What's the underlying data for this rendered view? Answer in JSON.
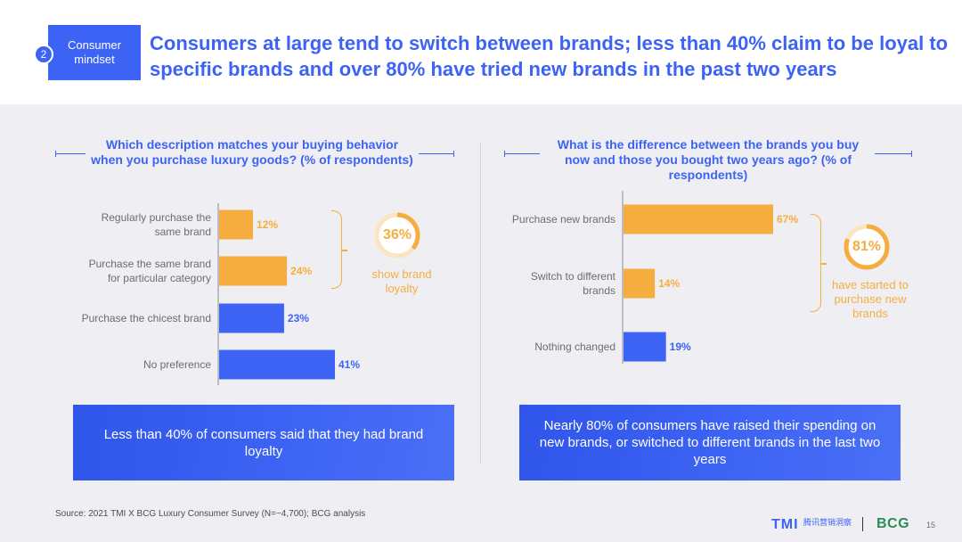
{
  "header": {
    "section_number": "2",
    "section_label": "Consumer mindset",
    "headline": "Consumers at large tend to switch between brands; less than 40% claim to be loyal to specific brands and over 80% have tried new brands in the past two years"
  },
  "left_panel": {
    "question": "Which description matches your buying behavior when you purchase luxury goods? (% of respondents)",
    "donut_value": "36%",
    "donut_note": "show brand loyalty",
    "callout": "Less than 40% of consumers said that they had brand loyalty"
  },
  "right_panel": {
    "question": "What is the difference between the brands you buy now and those you bought two years ago? (% of respondents)",
    "donut_value": "81%",
    "donut_note": "have started to purchase new brands",
    "callout": "Nearly 80% of consumers have raised their spending on new brands, or switched to different brands in the last two years"
  },
  "footer": {
    "source": "Source: 2021 TMI X BCG Luxury Consumer Survey (N=~4,700);  BCG analysis",
    "logo_tmi": "TMI",
    "logo_tmi_cn": "腾讯营销洞察",
    "logo_bcg": "BCG",
    "page_number": "15"
  },
  "colors": {
    "accent_blue": "#3d63f4",
    "accent_orange": "#f6ad3f",
    "panel_bg": "#efeff3"
  },
  "chart_data": [
    {
      "type": "bar",
      "orientation": "horizontal",
      "title": "Which description matches your buying behavior when you purchase luxury goods? (% of respondents)",
      "categories": [
        "Regularly purchase the same brand",
        "Purchase the same brand for particular category",
        "Purchase the chicest brand",
        "No preference"
      ],
      "values": [
        12,
        24,
        23,
        41
      ],
      "value_labels": [
        "12%",
        "24%",
        "23%",
        "41%"
      ],
      "bar_colors": [
        "#f6ad3f",
        "#f6ad3f",
        "#3d63f4",
        "#3d63f4"
      ],
      "xlim": [
        0,
        50
      ],
      "grid": false
    },
    {
      "type": "bar",
      "orientation": "horizontal",
      "title": "What is the difference between the brands you buy now and those you bought two years ago? (% of respondents)",
      "categories": [
        "Purchase new brands",
        "Switch to different brands",
        "Nothing changed"
      ],
      "values": [
        67,
        14,
        19
      ],
      "value_labels": [
        "67%",
        "14%",
        "19%"
      ],
      "bar_colors": [
        "#f6ad3f",
        "#f6ad3f",
        "#3d63f4"
      ],
      "xlim": [
        0,
        75
      ],
      "grid": false
    }
  ]
}
